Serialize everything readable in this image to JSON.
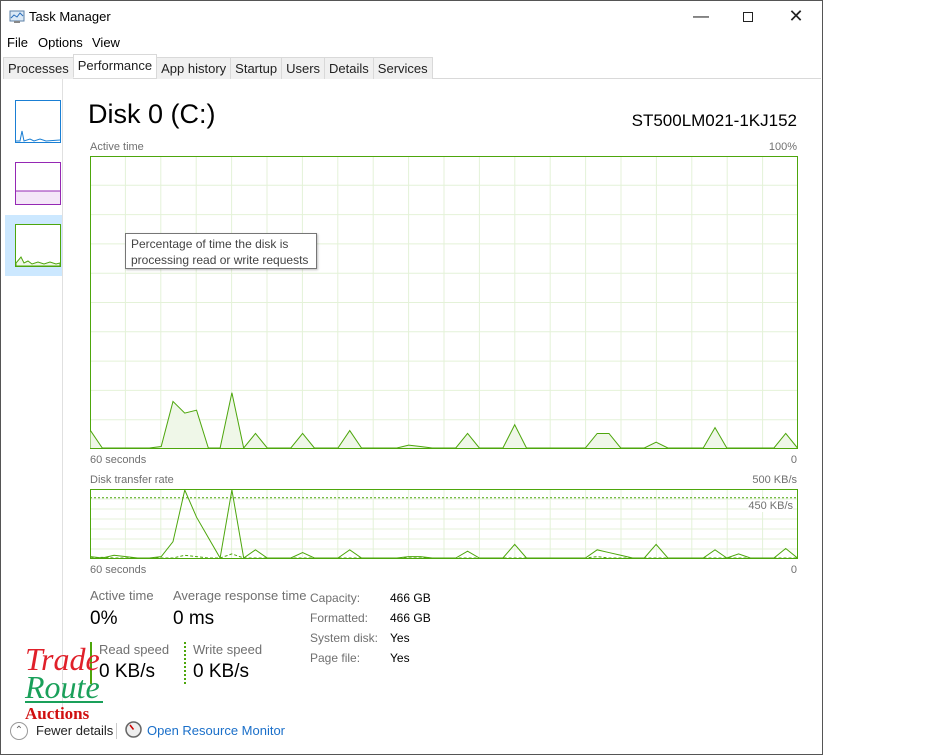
{
  "window": {
    "title": "Task Manager",
    "minimize_icon": "minimize-icon",
    "maximize_icon": "maximize-icon",
    "close_icon": "close-icon"
  },
  "menu": [
    "File",
    "Options",
    "View"
  ],
  "tabs": [
    "Processes",
    "Performance",
    "App history",
    "Startup",
    "Users",
    "Details",
    "Services"
  ],
  "active_tab": "Performance",
  "sidebar": {
    "items": [
      {
        "kind": "cpu",
        "color": "#1a7fd4"
      },
      {
        "kind": "memory",
        "color": "#9528b4"
      },
      {
        "kind": "disk",
        "color": "#4da60c",
        "selected": true
      }
    ]
  },
  "header": {
    "title": "Disk 0 (C:)",
    "model": "ST500LM021-1KJ152"
  },
  "active_chart": {
    "label": "Active time",
    "max_label": "100%",
    "x_left_label": "60 seconds",
    "x_right_label": "0",
    "tooltip": [
      "Percentage of time the disk is",
      "processing read or write requests"
    ]
  },
  "transfer_chart": {
    "label": "Disk transfer rate",
    "max_label": "500 KB/s",
    "line_label": "450 KB/s",
    "x_left_label": "60 seconds",
    "x_right_label": "0"
  },
  "chart_data": [
    {
      "type": "area",
      "title": "Active time",
      "ylim": [
        0,
        100
      ],
      "unit": "%",
      "x_range_seconds": [
        60,
        0
      ],
      "color": "#4da60c",
      "values": [
        6,
        0,
        0,
        0,
        0,
        0,
        0.5,
        16,
        12,
        13,
        0,
        0,
        19,
        0,
        5,
        0,
        0,
        0,
        5,
        0,
        0,
        0,
        6,
        0,
        0,
        0,
        0,
        1,
        0.5,
        0,
        0,
        0,
        5,
        0,
        0,
        0,
        8,
        0,
        0,
        0,
        0,
        0,
        0,
        5,
        5,
        0,
        0,
        0,
        2,
        0,
        0,
        0,
        0,
        7,
        0,
        0,
        0,
        0,
        0,
        5,
        0
      ]
    },
    {
      "type": "line",
      "title": "Disk transfer rate",
      "ylim": [
        0,
        500
      ],
      "unit": "KB/s",
      "x_range_seconds": [
        60,
        0
      ],
      "color": "#4da60c",
      "series": [
        {
          "style": "solid",
          "values": [
            10,
            0,
            20,
            10,
            0,
            0,
            10,
            120,
            500,
            300,
            150,
            0,
            500,
            0,
            60,
            0,
            0,
            0,
            40,
            0,
            0,
            0,
            60,
            0,
            0,
            0,
            0,
            10,
            10,
            0,
            0,
            0,
            50,
            0,
            0,
            0,
            100,
            0,
            0,
            0,
            0,
            0,
            0,
            60,
            40,
            20,
            0,
            0,
            100,
            0,
            0,
            0,
            0,
            60,
            0,
            30,
            0,
            0,
            0,
            70,
            0
          ]
        },
        {
          "style": "dashed",
          "values": [
            0,
            5,
            0,
            0,
            0,
            0,
            0,
            0,
            20,
            10,
            0,
            0,
            30,
            0,
            0,
            0,
            0,
            0,
            0,
            0,
            0,
            0,
            0,
            0,
            0,
            0,
            0,
            0,
            0,
            0,
            0,
            0,
            0,
            0,
            0,
            0,
            0,
            0,
            0,
            0,
            0,
            0,
            0,
            10,
            0,
            0,
            0,
            0,
            0,
            0,
            0,
            0,
            0,
            0,
            0,
            0,
            0,
            0,
            0,
            0,
            0
          ]
        }
      ]
    }
  ],
  "stats": {
    "active_time": {
      "label": "Active time",
      "value": "0%"
    },
    "avg_response": {
      "label": "Average response time",
      "value": "0 ms"
    },
    "read_speed": {
      "label": "Read speed",
      "value": "0 KB/s"
    },
    "write_speed": {
      "label": "Write speed",
      "value": "0 KB/s"
    }
  },
  "properties": [
    {
      "label": "Capacity:",
      "value": "466 GB"
    },
    {
      "label": "Formatted:",
      "value": "466 GB"
    },
    {
      "label": "System disk:",
      "value": "Yes"
    },
    {
      "label": "Page file:",
      "value": "Yes"
    }
  ],
  "footer": {
    "fewer_details": "Fewer details",
    "resource_monitor": "Open Resource Monitor"
  },
  "watermark": {
    "line1": "Trade",
    "line2": "Route",
    "line3": "Auctions"
  }
}
